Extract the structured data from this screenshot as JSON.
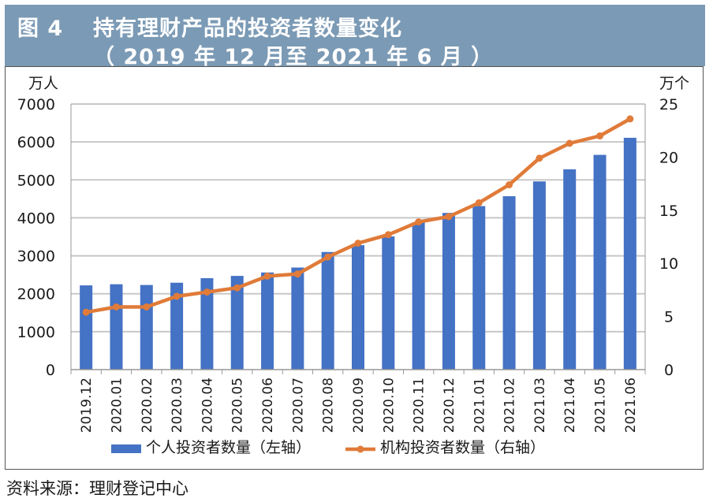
{
  "figure": {
    "number": "图 4",
    "title": "持有理财产品的投资者数量变化",
    "subtitle": "（ 2019 年 12 月至 2021 年 6 月 ）"
  },
  "source": "资料来源：理财登记中心",
  "colors": {
    "header_bg": "#7b9ab5",
    "bar": "#4472c4",
    "line": "#e07b39",
    "grid": "#c8c8c8"
  },
  "chart_data": {
    "type": "bar+line",
    "categories": [
      "2019.12",
      "2020.01",
      "2020.02",
      "2020.03",
      "2020.04",
      "2020.05",
      "2020.06",
      "2020.07",
      "2020.08",
      "2020.09",
      "2020.10",
      "2020.11",
      "2020.12",
      "2021.01",
      "2021.02",
      "2021.03",
      "2021.04",
      "2021.05",
      "2021.06"
    ],
    "series": [
      {
        "name": "个人投资者数量（左轴）",
        "type": "bar",
        "axis": "left",
        "values": [
          2220,
          2250,
          2230,
          2290,
          2410,
          2470,
          2560,
          2690,
          3100,
          3280,
          3510,
          3880,
          4130,
          4310,
          4570,
          4960,
          5280,
          5660,
          6110
        ]
      },
      {
        "name": "机构投资者数量（右轴）",
        "type": "line",
        "axis": "right",
        "values": [
          5.4,
          5.9,
          5.9,
          6.9,
          7.3,
          7.7,
          8.8,
          9.0,
          10.6,
          11.9,
          12.7,
          13.9,
          14.4,
          15.7,
          17.4,
          19.9,
          21.3,
          22.0,
          23.6
        ]
      }
    ],
    "left_axis": {
      "unit": "万人",
      "min": 0,
      "max": 7000,
      "ticks": [
        "0",
        "1000",
        "2000",
        "3000",
        "4000",
        "5000",
        "6000",
        "7000"
      ]
    },
    "right_axis": {
      "unit": "万个",
      "min": 0,
      "max": 25,
      "ticks": [
        "0",
        "5",
        "10",
        "15",
        "20",
        "25"
      ]
    },
    "legend": {
      "bar_label": "个人投资者数量（左轴）",
      "line_label": "机构投资者数量（右轴）",
      "position": "bottom"
    },
    "grid": true
  }
}
